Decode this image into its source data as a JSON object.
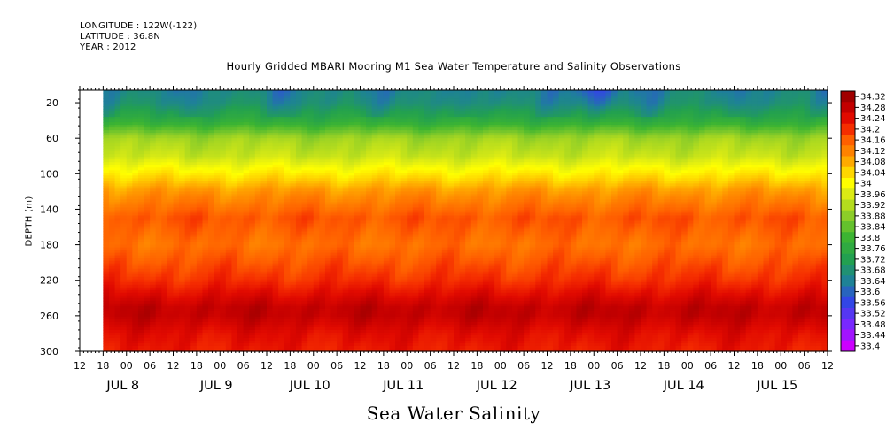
{
  "header": {
    "longitude": "LONGITUDE : 122W(-122)",
    "latitude": "LATITUDE : 36.8N",
    "year": "YEAR : 2012"
  },
  "chart_data": {
    "type": "heatmap",
    "title": "Hourly Gridded MBARI Mooring M1 Sea Water Temperature and Salinity Observations",
    "ylabel": "DEPTH (m)",
    "bottom_label": "Sea Water Salinity",
    "y_ticks": [
      20,
      60,
      100,
      140,
      180,
      220,
      260,
      300
    ],
    "ylim": [
      6,
      300
    ],
    "y_inverted": true,
    "x_hour_ticks": [
      "12",
      "18",
      "00",
      "06",
      "12",
      "18",
      "00",
      "06",
      "12",
      "18",
      "00",
      "06",
      "12",
      "18",
      "00",
      "06",
      "12",
      "18",
      "00",
      "06",
      "12",
      "18",
      "00",
      "06",
      "12",
      "18",
      "00",
      "06",
      "12",
      "18",
      "00",
      "06",
      "12"
    ],
    "x_day_labels": [
      "JUL  8",
      "JUL  9",
      "JUL 10",
      "JUL 11",
      "JUL 12",
      "JUL 13",
      "JUL 14",
      "JUL 15"
    ],
    "x_range_hours_from_jul7_12": [
      0,
      192
    ],
    "data_start_hour": 6,
    "colorbar_levels": [
      33.4,
      33.44,
      33.48,
      33.52,
      33.56,
      33.6,
      33.64,
      33.68,
      33.72,
      33.76,
      33.8,
      33.84,
      33.88,
      33.92,
      33.96,
      34,
      34.04,
      34.08,
      34.12,
      34.16,
      34.2,
      34.24,
      34.28,
      34.32
    ],
    "colorbar_labels": [
      "34.32",
      "34.28",
      "34.24",
      "34.2",
      "34.16",
      "34.12",
      "34.08",
      "34.04",
      "34",
      "33.96",
      "33.92",
      "33.88",
      "33.84",
      "33.8",
      "33.76",
      "33.72",
      "33.68",
      "33.64",
      "33.6",
      "33.56",
      "33.52",
      "33.48",
      "33.44",
      "33.4"
    ],
    "depth_profile": [
      {
        "depth": 6,
        "salinity": 33.66
      },
      {
        "depth": 20,
        "salinity": 33.68
      },
      {
        "depth": 40,
        "salinity": 33.76
      },
      {
        "depth": 60,
        "salinity": 33.9
      },
      {
        "depth": 80,
        "salinity": 33.94
      },
      {
        "depth": 100,
        "salinity": 34.02
      },
      {
        "depth": 120,
        "salinity": 34.1
      },
      {
        "depth": 150,
        "salinity": 34.17
      },
      {
        "depth": 180,
        "salinity": 34.14
      },
      {
        "depth": 220,
        "salinity": 34.2
      },
      {
        "depth": 250,
        "salinity": 34.28
      },
      {
        "depth": 260,
        "salinity": 34.28
      },
      {
        "depth": 280,
        "salinity": 34.24
      },
      {
        "depth": 300,
        "salinity": 34.22
      }
    ],
    "colors": {
      "low": "#cc00ff",
      "mid_low": "#3355ee",
      "mid": "#22aa44",
      "mid_high": "#ffff00",
      "high": "#ff6600",
      "max": "#bb0000"
    },
    "grid": false
  }
}
